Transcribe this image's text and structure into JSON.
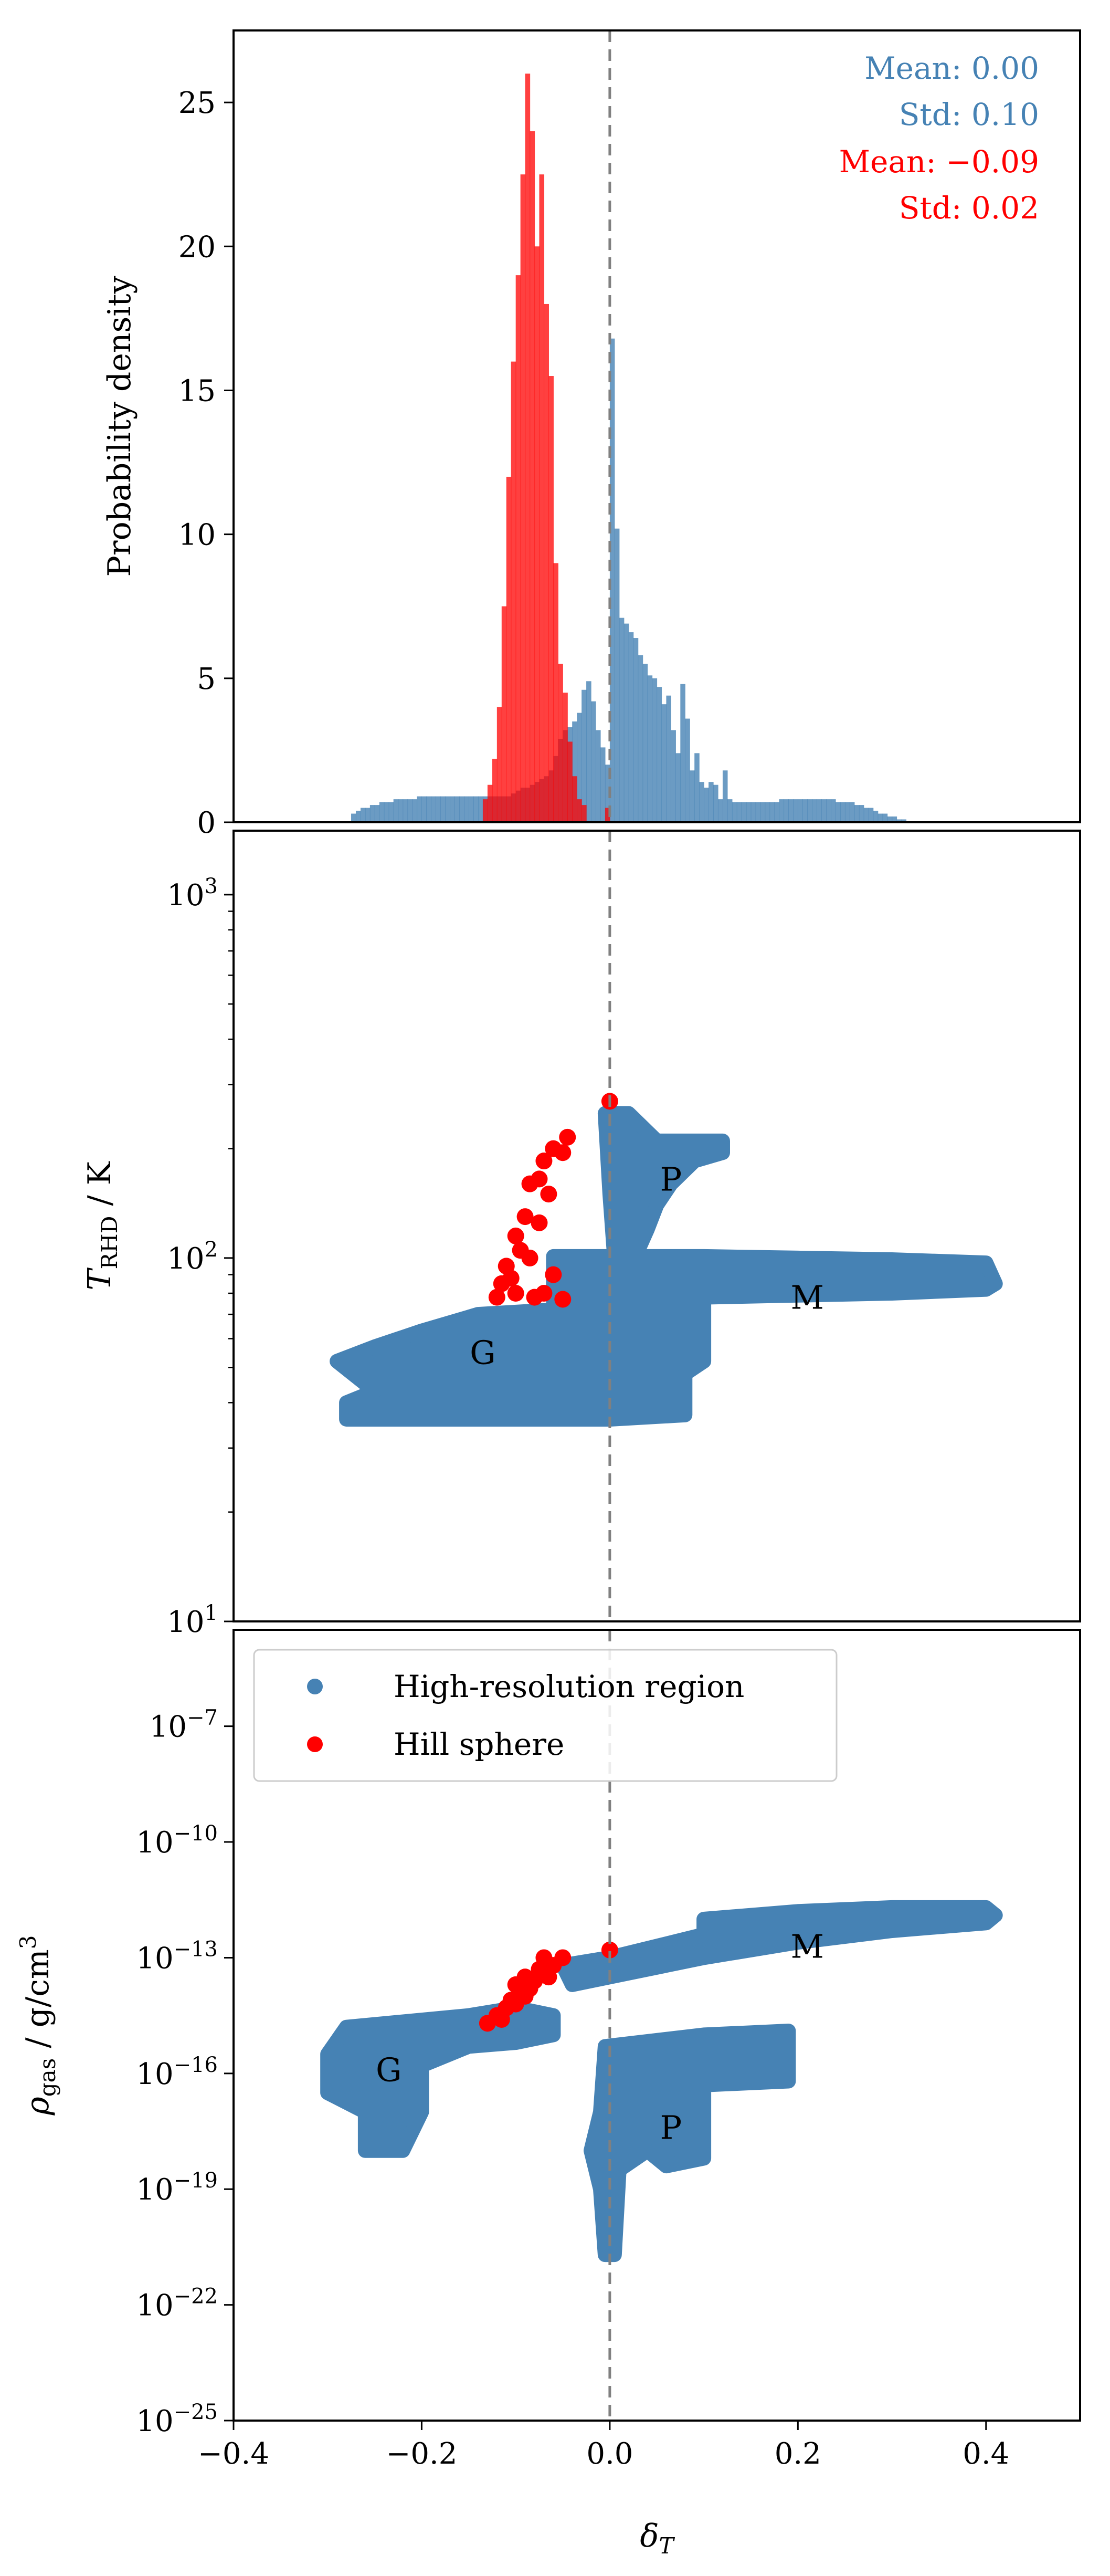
{
  "colors": {
    "blue": "#4682b4",
    "red": "#ff0000",
    "dashed": "#808080"
  },
  "chart_data": [
    {
      "type": "bar",
      "subtype": "histogram",
      "ylabel": "Probability density",
      "xlim": [
        -0.4,
        0.5
      ],
      "ylim": [
        0,
        27.5
      ],
      "yticks": [
        0,
        5,
        10,
        15,
        20,
        25
      ],
      "bin_width": 0.005,
      "reference_line_x": 0.0,
      "series": [
        {
          "name": "High-resolution region",
          "color": "#4682b4",
          "bin_start": -0.275,
          "values": [
            0.3,
            0.4,
            0.5,
            0.5,
            0.6,
            0.6,
            0.7,
            0.7,
            0.7,
            0.8,
            0.8,
            0.8,
            0.8,
            0.8,
            0.9,
            0.9,
            0.9,
            0.9,
            0.9,
            0.9,
            0.9,
            0.9,
            0.9,
            0.9,
            0.9,
            0.9,
            0.9,
            0.9,
            0.9,
            0.9,
            0.9,
            0.9,
            0.9,
            0.9,
            1.0,
            1.1,
            1.2,
            1.2,
            1.3,
            1.4,
            1.5,
            1.6,
            1.8,
            2.3,
            2.9,
            3.2,
            3.3,
            3.5,
            3.8,
            4.6,
            4.9,
            4.2,
            3.2,
            2.6,
            2.0,
            16.8,
            10.2,
            7.1,
            6.9,
            6.6,
            6.4,
            5.8,
            5.5,
            5.1,
            5.0,
            4.7,
            4.1,
            4.4,
            3.2,
            2.4,
            4.8,
            3.6,
            1.8,
            2.4,
            1.4,
            1.2,
            1.4,
            1.3,
            0.8,
            1.8,
            0.8,
            0.7,
            0.7,
            0.7,
            0.7,
            0.7,
            0.7,
            0.7,
            0.7,
            0.7,
            0.7,
            0.8,
            0.8,
            0.8,
            0.8,
            0.8,
            0.8,
            0.8,
            0.8,
            0.8,
            0.8,
            0.8,
            0.8,
            0.7,
            0.7,
            0.7,
            0.7,
            0.6,
            0.6,
            0.5,
            0.5,
            0.4,
            0.3,
            0.3,
            0.2,
            0.2,
            0.1,
            0.1
          ]
        },
        {
          "name": "Hill sphere",
          "color": "#ff0000",
          "bin_start": -0.135,
          "values": [
            0.8,
            1.3,
            2.2,
            4.0,
            7.5,
            12.0,
            16.0,
            19.0,
            22.5,
            26.0,
            24.0,
            20.0,
            22.5,
            18.0,
            15.5,
            9.0,
            5.5,
            4.5,
            2.8,
            1.6,
            0.8,
            0.6,
            0,
            0,
            0,
            0,
            0.5
          ]
        }
      ],
      "annotations": [
        {
          "text": "Mean: 0.00",
          "color": "#4682b4"
        },
        {
          "text": "Std: 0.10",
          "color": "#4682b4"
        },
        {
          "text": "Mean: −0.09",
          "color": "#ff0000"
        },
        {
          "text": "Std: 0.02",
          "color": "#ff0000"
        }
      ]
    },
    {
      "type": "scatter",
      "ylabel_main": "T",
      "ylabel_sub": "RHD",
      "ylabel_unit": " / K",
      "yscale": "log",
      "xlim": [
        -0.4,
        0.5
      ],
      "ylim": [
        10,
        1500
      ],
      "yticks": [
        {
          "base": "10",
          "exp": "1",
          "value": 10
        },
        {
          "base": "10",
          "exp": "2",
          "value": 100
        },
        {
          "base": "10",
          "exp": "3",
          "value": 1000
        }
      ],
      "reference_line_x": 0.0,
      "regions": [
        {
          "label": "P",
          "color": "#4682b4",
          "outline": [
            [
              -0.005,
              250
            ],
            [
              0.02,
              250
            ],
            [
              0.05,
              210
            ],
            [
              0.09,
              210
            ],
            [
              0.12,
              210
            ],
            [
              0.12,
              195
            ],
            [
              0.09,
              185
            ],
            [
              0.065,
              160
            ],
            [
              0.05,
              140
            ],
            [
              0.04,
              120
            ],
            [
              0.03,
              105
            ],
            [
              0.005,
              100
            ],
            [
              0.0,
              150
            ]
          ]
        },
        {
          "label": "M",
          "color": "#4682b4",
          "outline": [
            [
              -0.06,
              101
            ],
            [
              0.0,
              101
            ],
            [
              0.1,
              101
            ],
            [
              0.2,
              100
            ],
            [
              0.3,
              99
            ],
            [
              0.4,
              97
            ],
            [
              0.41,
              85
            ],
            [
              0.4,
              82
            ],
            [
              0.3,
              80
            ],
            [
              0.2,
              79
            ],
            [
              0.1,
              78
            ],
            [
              0.0,
              77
            ],
            [
              -0.06,
              76
            ]
          ]
        },
        {
          "label": "G",
          "color": "#4682b4",
          "outline": [
            [
              -0.14,
              70
            ],
            [
              -0.06,
              72
            ],
            [
              0.0,
              74
            ],
            [
              0.1,
              75
            ],
            [
              0.1,
              52
            ],
            [
              0.08,
              48
            ],
            [
              0.08,
              37
            ],
            [
              0.0,
              36
            ],
            [
              -0.1,
              36
            ],
            [
              -0.28,
              36
            ],
            [
              -0.28,
              40
            ],
            [
              -0.25,
              43
            ],
            [
              -0.29,
              52
            ],
            [
              -0.25,
              57
            ],
            [
              -0.2,
              63
            ]
          ]
        }
      ],
      "series": [
        {
          "name": "Hill sphere",
          "color": "#ff0000",
          "points": [
            [
              0.0,
              270
            ],
            [
              -0.045,
              215
            ],
            [
              -0.05,
              195
            ],
            [
              -0.06,
              200
            ],
            [
              -0.07,
              185
            ],
            [
              -0.075,
              165
            ],
            [
              -0.065,
              150
            ],
            [
              -0.085,
              160
            ],
            [
              -0.09,
              130
            ],
            [
              -0.075,
              125
            ],
            [
              -0.1,
              115
            ],
            [
              -0.11,
              95
            ],
            [
              -0.115,
              85
            ],
            [
              -0.12,
              78
            ],
            [
              -0.1,
              80
            ],
            [
              -0.08,
              78
            ],
            [
              -0.07,
              80
            ],
            [
              -0.05,
              77
            ],
            [
              -0.095,
              105
            ],
            [
              -0.085,
              100
            ],
            [
              -0.105,
              88
            ],
            [
              -0.06,
              90
            ]
          ]
        }
      ],
      "labels": [
        {
          "text": "P",
          "x": 0.065,
          "y": 165
        },
        {
          "text": "M",
          "x": 0.21,
          "y": 78
        },
        {
          "text": "G",
          "x": -0.135,
          "y": 55
        }
      ]
    },
    {
      "type": "scatter",
      "xlabel_main": "δ",
      "xlabel_sub": "T",
      "ylabel_main": "ρ",
      "ylabel_sub": "gas",
      "ylabel_unit_pre": " / g/cm",
      "ylabel_unit_sup": "3",
      "yscale": "log",
      "xlim": [
        -0.4,
        0.5
      ],
      "ylim": [
        -25,
        -4.5
      ],
      "xticks": [
        "−0.4",
        "−0.2",
        "0.0",
        "0.2",
        "0.4"
      ],
      "xtick_values": [
        -0.4,
        -0.2,
        0.0,
        0.2,
        0.4
      ],
      "yticks": [
        {
          "base": "10",
          "exp": "−25",
          "value": -25
        },
        {
          "base": "10",
          "exp": "−22",
          "value": -22
        },
        {
          "base": "10",
          "exp": "−19",
          "value": -19
        },
        {
          "base": "10",
          "exp": "−16",
          "value": -16
        },
        {
          "base": "10",
          "exp": "−13",
          "value": -13
        },
        {
          "base": "10",
          "exp": "−10",
          "value": -10
        },
        {
          "base": "10",
          "exp": "−7",
          "value": -7
        }
      ],
      "reference_line_x": 0.0,
      "legend": {
        "position": "upper-left",
        "entries": [
          {
            "label": "High-resolution region",
            "color": "#4682b4"
          },
          {
            "label": "Hill sphere",
            "color": "#ff0000"
          }
        ]
      },
      "regions": [
        {
          "label": "M",
          "color": "#4682b4",
          "outline": [
            [
              -0.05,
              -13.2
            ],
            [
              0.0,
              -13.0
            ],
            [
              0.1,
              -12.4
            ],
            [
              0.1,
              -12.0
            ],
            [
              0.2,
              -11.8
            ],
            [
              0.3,
              -11.7
            ],
            [
              0.4,
              -11.7
            ],
            [
              0.41,
              -11.9
            ],
            [
              0.4,
              -12.1
            ],
            [
              0.3,
              -12.3
            ],
            [
              0.2,
              -12.6
            ],
            [
              0.1,
              -13.0
            ],
            [
              0.0,
              -13.5
            ],
            [
              -0.04,
              -13.7
            ]
          ]
        },
        {
          "label": "G",
          "color": "#4682b4",
          "outline": [
            [
              -0.28,
              -14.8
            ],
            [
              -0.15,
              -14.5
            ],
            [
              -0.1,
              -14.3
            ],
            [
              -0.06,
              -14.5
            ],
            [
              -0.06,
              -15.0
            ],
            [
              -0.1,
              -15.2
            ],
            [
              -0.15,
              -15.3
            ],
            [
              -0.2,
              -15.8
            ],
            [
              -0.2,
              -17.0
            ],
            [
              -0.22,
              -18.0
            ],
            [
              -0.26,
              -18.0
            ],
            [
              -0.26,
              -17.0
            ],
            [
              -0.3,
              -16.5
            ],
            [
              -0.3,
              -15.5
            ]
          ]
        },
        {
          "label": "P",
          "color": "#4682b4",
          "outline": [
            [
              -0.005,
              -15.3
            ],
            [
              0.1,
              -15.0
            ],
            [
              0.19,
              -14.9
            ],
            [
              0.19,
              -16.2
            ],
            [
              0.1,
              -16.3
            ],
            [
              0.1,
              -18.2
            ],
            [
              0.06,
              -18.4
            ],
            [
              0.04,
              -18.0
            ],
            [
              0.01,
              -18.5
            ],
            [
              0.005,
              -20.7
            ],
            [
              -0.005,
              -20.7
            ],
            [
              -0.01,
              -19.0
            ],
            [
              -0.02,
              -18.0
            ],
            [
              -0.01,
              -17.0
            ]
          ]
        }
      ],
      "series": [
        {
          "name": "Hill sphere",
          "color": "#ff0000",
          "points": [
            [
              0.0,
              -12.8
            ],
            [
              -0.05,
              -13.0
            ],
            [
              -0.06,
              -13.2
            ],
            [
              -0.07,
              -13.0
            ],
            [
              -0.075,
              -13.3
            ],
            [
              -0.08,
              -13.6
            ],
            [
              -0.09,
              -13.5
            ],
            [
              -0.095,
              -13.9
            ],
            [
              -0.1,
              -13.7
            ],
            [
              -0.105,
              -14.1
            ],
            [
              -0.11,
              -14.3
            ],
            [
              -0.12,
              -14.5
            ],
            [
              -0.13,
              -14.7
            ],
            [
              -0.1,
              -14.2
            ],
            [
              -0.085,
              -13.8
            ],
            [
              -0.065,
              -13.5
            ],
            [
              -0.115,
              -14.6
            ],
            [
              -0.09,
              -14.0
            ]
          ]
        }
      ],
      "labels": [
        {
          "text": "M",
          "x": 0.21,
          "y": -12.7
        },
        {
          "text": "G",
          "x": -0.235,
          "y": -15.9
        },
        {
          "text": "P",
          "x": 0.065,
          "y": -17.4
        }
      ]
    }
  ]
}
